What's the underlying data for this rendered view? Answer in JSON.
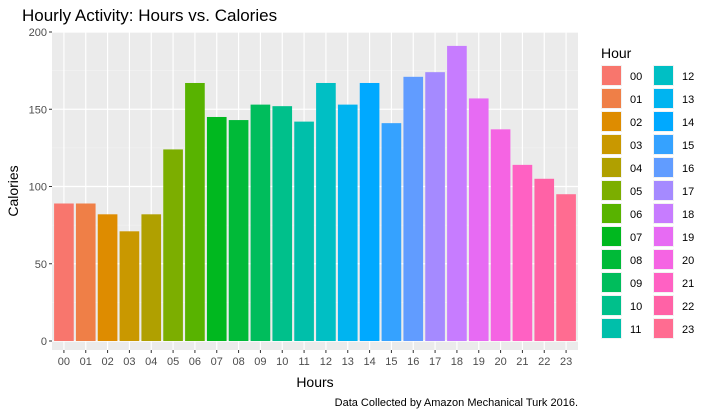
{
  "chart_data": {
    "type": "bar",
    "title": "Hourly Activity: Hours vs. Calories",
    "xlabel": "Hours",
    "ylabel": "Calories",
    "caption": "Data Collected by Amazon Mechanical Turk 2016.",
    "categories": [
      "00",
      "01",
      "02",
      "03",
      "04",
      "05",
      "06",
      "07",
      "08",
      "09",
      "10",
      "11",
      "12",
      "13",
      "14",
      "15",
      "16",
      "17",
      "18",
      "19",
      "20",
      "21",
      "22",
      "23"
    ],
    "values": [
      89,
      89,
      82,
      71,
      82,
      124,
      167,
      145,
      143,
      153,
      152,
      142,
      167,
      153,
      167,
      141,
      171,
      174,
      191,
      157,
      137,
      114,
      105,
      95
    ],
    "ylim": [
      0,
      200
    ],
    "yticks": [
      0,
      50,
      100,
      150,
      200
    ],
    "grid": true,
    "legend": {
      "title": "Hour",
      "placement": "right",
      "entries": [
        "00",
        "01",
        "02",
        "03",
        "04",
        "05",
        "06",
        "07",
        "08",
        "09",
        "10",
        "11",
        "12",
        "13",
        "14",
        "15",
        "16",
        "17",
        "18",
        "19",
        "20",
        "21",
        "22",
        "23"
      ]
    },
    "colors": [
      "#F8766D",
      "#EF7F47",
      "#DE8C00",
      "#C99800",
      "#B0A000",
      "#7CAE00",
      "#58B300",
      "#00B81F",
      "#00BA38",
      "#00BD5C",
      "#00C08B",
      "#00BFAA",
      "#00BFC4",
      "#00B4F0",
      "#00A9FF",
      "#35A2FF",
      "#619CFF",
      "#A58AFF",
      "#C77CFF",
      "#E76BF3",
      "#F564E3",
      "#FF61C3",
      "#FF62A6",
      "#FF6C91"
    ]
  }
}
